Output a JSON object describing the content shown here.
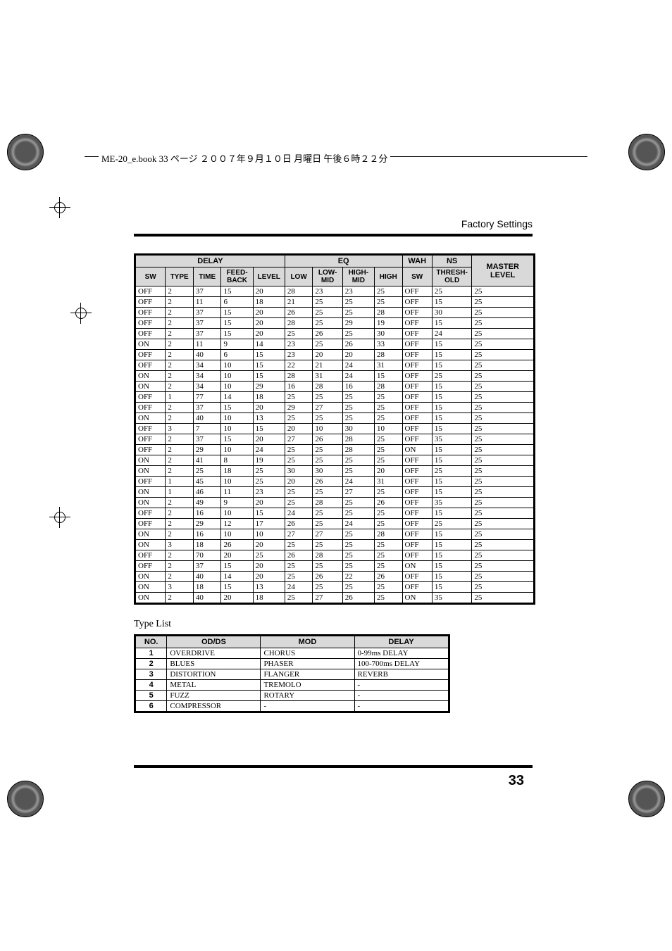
{
  "header": {
    "text": "ME-20_e.book 33 ページ ２００７年９月１０日 月曜日 午後６時２２分"
  },
  "section_title": "Factory Settings",
  "page_number": "33",
  "main_table": {
    "group_headers": [
      "DELAY",
      "EQ",
      "WAH",
      "NS",
      "MASTER LEVEL"
    ],
    "sub_headers": [
      "SW",
      "TYPE",
      "TIME",
      "FEED-BACK",
      "LEVEL",
      "LOW",
      "LOW-MID",
      "HIGH-MID",
      "HIGH",
      "SW",
      "THRESH-OLD"
    ],
    "col_widths_pct": [
      7.5,
      7,
      7,
      8,
      8,
      7,
      7.5,
      8,
      7,
      7.5,
      10,
      15.5
    ],
    "rows": [
      [
        "OFF",
        "2",
        "37",
        "15",
        "20",
        "28",
        "23",
        "23",
        "25",
        "OFF",
        "25",
        "25"
      ],
      [
        "OFF",
        "2",
        "11",
        "6",
        "18",
        "21",
        "25",
        "25",
        "25",
        "OFF",
        "15",
        "25"
      ],
      [
        "OFF",
        "2",
        "37",
        "15",
        "20",
        "26",
        "25",
        "25",
        "28",
        "OFF",
        "30",
        "25"
      ],
      [
        "OFF",
        "2",
        "37",
        "15",
        "20",
        "28",
        "25",
        "29",
        "19",
        "OFF",
        "15",
        "25"
      ],
      [
        "OFF",
        "2",
        "37",
        "15",
        "20",
        "25",
        "26",
        "25",
        "30",
        "OFF",
        "24",
        "25"
      ],
      [
        "ON",
        "2",
        "11",
        "9",
        "14",
        "23",
        "25",
        "26",
        "33",
        "OFF",
        "15",
        "25"
      ],
      [
        "OFF",
        "2",
        "40",
        "6",
        "15",
        "23",
        "20",
        "20",
        "28",
        "OFF",
        "15",
        "25"
      ],
      [
        "OFF",
        "2",
        "34",
        "10",
        "15",
        "22",
        "21",
        "24",
        "31",
        "OFF",
        "15",
        "25"
      ],
      [
        "ON",
        "2",
        "34",
        "10",
        "15",
        "28",
        "31",
        "24",
        "15",
        "OFF",
        "25",
        "25"
      ],
      [
        "ON",
        "2",
        "34",
        "10",
        "29",
        "16",
        "28",
        "16",
        "28",
        "OFF",
        "15",
        "25"
      ],
      [
        "OFF",
        "1",
        "77",
        "14",
        "18",
        "25",
        "25",
        "25",
        "25",
        "OFF",
        "15",
        "25"
      ],
      [
        "OFF",
        "2",
        "37",
        "15",
        "20",
        "29",
        "27",
        "25",
        "25",
        "OFF",
        "15",
        "25"
      ],
      [
        "ON",
        "2",
        "40",
        "10",
        "13",
        "25",
        "25",
        "25",
        "25",
        "OFF",
        "15",
        "25"
      ],
      [
        "OFF",
        "3",
        "7",
        "10",
        "15",
        "20",
        "10",
        "30",
        "10",
        "OFF",
        "15",
        "25"
      ],
      [
        "OFF",
        "2",
        "37",
        "15",
        "20",
        "27",
        "26",
        "28",
        "25",
        "OFF",
        "35",
        "25"
      ],
      [
        "OFF",
        "2",
        "29",
        "10",
        "24",
        "25",
        "25",
        "28",
        "25",
        "ON",
        "15",
        "25"
      ],
      [
        "ON",
        "2",
        "41",
        "8",
        "19",
        "25",
        "25",
        "25",
        "25",
        "OFF",
        "15",
        "25"
      ],
      [
        "ON",
        "2",
        "25",
        "18",
        "25",
        "30",
        "30",
        "25",
        "20",
        "OFF",
        "25",
        "25"
      ],
      [
        "OFF",
        "1",
        "45",
        "10",
        "25",
        "20",
        "26",
        "24",
        "31",
        "OFF",
        "15",
        "25"
      ],
      [
        "ON",
        "1",
        "46",
        "11",
        "23",
        "25",
        "25",
        "27",
        "25",
        "OFF",
        "15",
        "25"
      ],
      [
        "ON",
        "2",
        "49",
        "9",
        "20",
        "25",
        "28",
        "25",
        "26",
        "OFF",
        "35",
        "25"
      ],
      [
        "OFF",
        "2",
        "16",
        "10",
        "15",
        "24",
        "25",
        "25",
        "25",
        "OFF",
        "15",
        "25"
      ],
      [
        "OFF",
        "2",
        "29",
        "12",
        "17",
        "26",
        "25",
        "24",
        "25",
        "OFF",
        "25",
        "25"
      ],
      [
        "ON",
        "2",
        "16",
        "10",
        "10",
        "27",
        "27",
        "25",
        "28",
        "OFF",
        "15",
        "25"
      ],
      [
        "ON",
        "3",
        "18",
        "26",
        "20",
        "25",
        "25",
        "25",
        "25",
        "OFF",
        "15",
        "25"
      ],
      [
        "OFF",
        "2",
        "70",
        "20",
        "25",
        "26",
        "28",
        "25",
        "25",
        "OFF",
        "15",
        "25"
      ],
      [
        "OFF",
        "2",
        "37",
        "15",
        "20",
        "25",
        "25",
        "25",
        "25",
        "ON",
        "15",
        "25"
      ],
      [
        "ON",
        "2",
        "40",
        "14",
        "20",
        "25",
        "26",
        "22",
        "26",
        "OFF",
        "15",
        "25"
      ],
      [
        "ON",
        "3",
        "18",
        "15",
        "13",
        "24",
        "25",
        "25",
        "25",
        "OFF",
        "15",
        "25"
      ],
      [
        "ON",
        "2",
        "40",
        "20",
        "18",
        "25",
        "27",
        "26",
        "25",
        "ON",
        "35",
        "25"
      ]
    ]
  },
  "type_list": {
    "title": "Type List",
    "headers": [
      "NO.",
      "OD/DS",
      "MOD",
      "DELAY"
    ],
    "rows": [
      [
        "1",
        "OVERDRIVE",
        "CHORUS",
        "0-99ms DELAY"
      ],
      [
        "2",
        "BLUES",
        "PHASER",
        "100-700ms DELAY"
      ],
      [
        "3",
        "DISTORTION",
        "FLANGER",
        "REVERB"
      ],
      [
        "4",
        "METAL",
        "TREMOLO",
        "-"
      ],
      [
        "5",
        "FUZZ",
        "ROTARY",
        "-"
      ],
      [
        "6",
        "COMPRESSOR",
        "-",
        "-"
      ]
    ]
  }
}
